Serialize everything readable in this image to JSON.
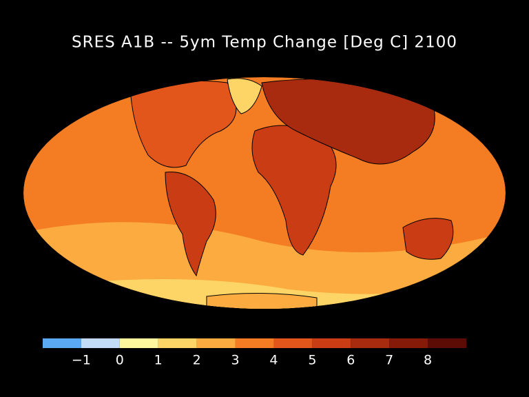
{
  "title": "SRES A1B -- 5ym Temp Change [Deg C] 2100",
  "colorbar": {
    "bounds": [
      -2,
      -1,
      0,
      1,
      2,
      3,
      4,
      5,
      6,
      7,
      8,
      9
    ],
    "colors": [
      "#5aa9f2",
      "#c2dbf7",
      "#fff79e",
      "#fdd466",
      "#fbab3f",
      "#f47c22",
      "#e3561b",
      "#c93c14",
      "#a82a0f",
      "#861a09",
      "#5c0c05"
    ],
    "ticks": [
      {
        "value": -1,
        "label": "−1"
      },
      0,
      1,
      2,
      3,
      4,
      5,
      6,
      7,
      8
    ]
  }
}
